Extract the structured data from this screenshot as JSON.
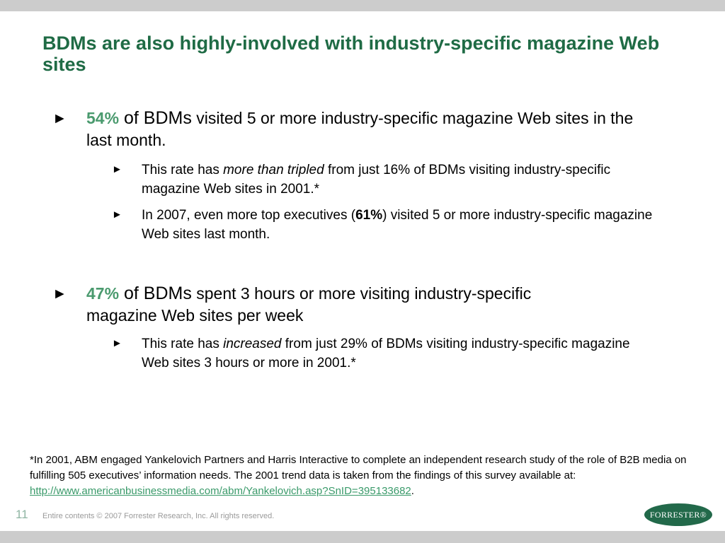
{
  "slide": {
    "title": "BDMs are also highly-involved with industry-specific magazine Web sites",
    "marker_l1": "►",
    "marker_l2": "►",
    "bullets": [
      {
        "pct": "54%",
        "lead": " of BDMs",
        "text": " visited 5 or more industry-specific magazine Web sites in the last month.",
        "sub": [
          {
            "pre": "This rate has ",
            "em": "more than tripled",
            "post": " from just 16% of BDMs visiting industry-specific magazine Web sites in 2001.*"
          },
          {
            "pre": "In 2007, even more top executives (",
            "strong": "61%",
            "post": ") visited 5 or more industry-specific magazine Web sites last month."
          }
        ]
      },
      {
        "pct": "47%",
        "lead": " of BDMs",
        "text": " spent 3 hours or more visiting industry-specific magazine Web sites per week",
        "sub": [
          {
            "pre": "This rate has ",
            "em": "increased",
            "post": " from just 29% of BDMs visiting industry-specific magazine Web sites 3 hours or more in 2001.*"
          }
        ]
      }
    ]
  },
  "footnote": {
    "text": "*In 2001, ABM engaged Yankelovich Partners and Harris Interactive to complete an independent research study of the role of B2B media on fulfilling 505 executives’ information needs. The 2001 trend data is taken from the findings of this survey available at: ",
    "link": "http://www.americanbusinessmedia.com/abm/Yankelovich.asp?SnID=395133682",
    "end": "."
  },
  "footer": {
    "page_number": "11",
    "copyright": "Entire contents © 2007  Forrester Research, Inc. All rights reserved.",
    "logo_text": "FORRESTER®"
  },
  "colors": {
    "title": "#1f6b45",
    "percent": "#4a9a6e",
    "link": "#3a9a6a",
    "band": "#cccccc",
    "logo": "#22694a"
  }
}
